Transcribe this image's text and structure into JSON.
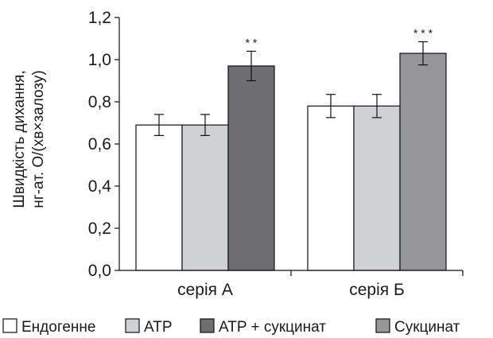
{
  "chart_data": {
    "type": "bar",
    "ylabel_line1": "Швидкість дихання,",
    "ylabel_line2": "нг-ат. О/(хв×залозу)",
    "ylim": [
      0,
      1.2
    ],
    "y_ticks": [
      "0,0",
      "0,2",
      "0,4",
      "0,6",
      "0,8",
      "1,0",
      "1,2"
    ],
    "categories": [
      "серія А",
      "серія Б"
    ],
    "series": [
      {
        "name": "Ендогенне",
        "color": "#ffffff",
        "values": [
          0.69,
          0.78
        ],
        "errors": [
          0.05,
          0.055
        ]
      },
      {
        "name": "ATP",
        "color": "#d0d1d3",
        "values": [
          0.69,
          0.78
        ],
        "errors": [
          0.05,
          0.055
        ]
      },
      {
        "name": "ATP + сукцинат",
        "color": "#6e6e70",
        "values": [
          0.97,
          null
        ],
        "errors": [
          0.07,
          null
        ]
      },
      {
        "name": "Сукцинат",
        "color": "#969698",
        "values": [
          null,
          1.03
        ],
        "errors": [
          null,
          0.055
        ]
      }
    ],
    "annotations": [
      {
        "category": "серія А",
        "series": "ATP + сукцинат",
        "text": "* *"
      },
      {
        "category": "серія Б",
        "series": "Сукцинат",
        "text": "* * *"
      }
    ],
    "grid": false,
    "legend_position": "bottom"
  }
}
